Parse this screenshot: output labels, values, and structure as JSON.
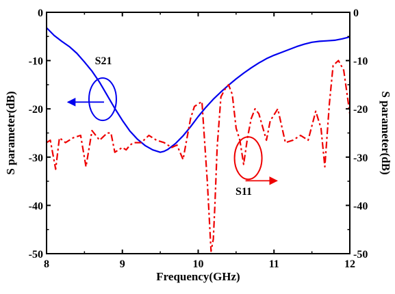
{
  "chart_data": {
    "type": "line",
    "xlabel": "Frequency(GHz)",
    "ylabel_left": "S parameter(dB)",
    "ylabel_right": "S parameter(dB)",
    "xlim": [
      8,
      12
    ],
    "ylim": [
      -50,
      0
    ],
    "x_ticks": [
      "8",
      "9",
      "10",
      "11",
      "12"
    ],
    "y_ticks": [
      "0",
      "-10",
      "-20",
      "-30",
      "-40",
      "-50"
    ],
    "grid": false,
    "legend": "none",
    "series": [
      {
        "name": "S21",
        "color": "#0000ee",
        "style": "solid",
        "x": [
          8.0,
          8.1,
          8.2,
          8.3,
          8.4,
          8.5,
          8.6,
          8.7,
          8.8,
          8.9,
          9.0,
          9.1,
          9.2,
          9.3,
          9.4,
          9.5,
          9.55,
          9.6,
          9.7,
          9.8,
          9.9,
          10.0,
          10.1,
          10.2,
          10.3,
          10.4,
          10.5,
          10.6,
          10.7,
          10.8,
          10.9,
          11.0,
          11.1,
          11.2,
          11.3,
          11.4,
          11.5,
          11.6,
          11.7,
          11.8,
          11.9,
          12.0
        ],
        "y": [
          -3.2,
          -4.8,
          -6.0,
          -7.1,
          -8.5,
          -10.3,
          -12.2,
          -14.5,
          -17.2,
          -19.9,
          -22.4,
          -24.6,
          -26.3,
          -27.6,
          -28.5,
          -29.0,
          -28.8,
          -28.4,
          -27.2,
          -25.6,
          -23.7,
          -21.6,
          -19.7,
          -18.0,
          -16.5,
          -15.1,
          -13.8,
          -12.6,
          -11.5,
          -10.5,
          -9.6,
          -8.9,
          -8.3,
          -7.7,
          -7.1,
          -6.6,
          -6.2,
          -6.0,
          -5.9,
          -5.8,
          -5.5,
          -5.1
        ]
      },
      {
        "name": "S11",
        "color": "#ee0000",
        "style": "dashdot",
        "x": [
          8.0,
          8.05,
          8.12,
          8.17,
          8.25,
          8.35,
          8.45,
          8.52,
          8.6,
          8.7,
          8.8,
          8.85,
          8.9,
          9.0,
          9.05,
          9.1,
          9.15,
          9.25,
          9.35,
          9.45,
          9.55,
          9.65,
          9.72,
          9.8,
          9.9,
          9.95,
          10.05,
          10.12,
          10.17,
          10.2,
          10.22,
          10.25,
          10.3,
          10.35,
          10.4,
          10.45,
          10.5,
          10.55,
          10.6,
          10.65,
          10.7,
          10.75,
          10.8,
          10.9,
          10.95,
          11.05,
          11.15,
          11.25,
          11.35,
          11.45,
          11.55,
          11.62,
          11.67,
          11.73,
          11.78,
          11.85,
          11.92,
          12.0
        ],
        "y": [
          -27.0,
          -26.5,
          -32.5,
          -26.0,
          -27.0,
          -26.0,
          -25.5,
          -32.0,
          -24.5,
          -26.5,
          -25.0,
          -25.0,
          -29.0,
          -28.0,
          -28.5,
          -27.5,
          -27.0,
          -27.0,
          -25.5,
          -26.5,
          -27.0,
          -28.0,
          -27.5,
          -30.5,
          -22.0,
          -19.5,
          -18.5,
          -35.0,
          -49.5,
          -47.0,
          -40.0,
          -28.0,
          -17.5,
          -16.0,
          -15.0,
          -17.0,
          -24.0,
          -26.5,
          -31.5,
          -26.0,
          -22.0,
          -20.0,
          -21.0,
          -26.5,
          -22.5,
          -20.0,
          -27.0,
          -26.5,
          -25.5,
          -26.5,
          -20.5,
          -24.0,
          -32.0,
          -19.0,
          -11.0,
          -10.0,
          -12.0,
          -21.0
        ]
      }
    ],
    "annotations": [
      {
        "label": "S21",
        "x": 8.75,
        "y": -10.8,
        "arrow": "left-axis"
      },
      {
        "label": "S11",
        "x": 10.6,
        "y": -37.8,
        "arrow": "right-axis"
      }
    ]
  }
}
